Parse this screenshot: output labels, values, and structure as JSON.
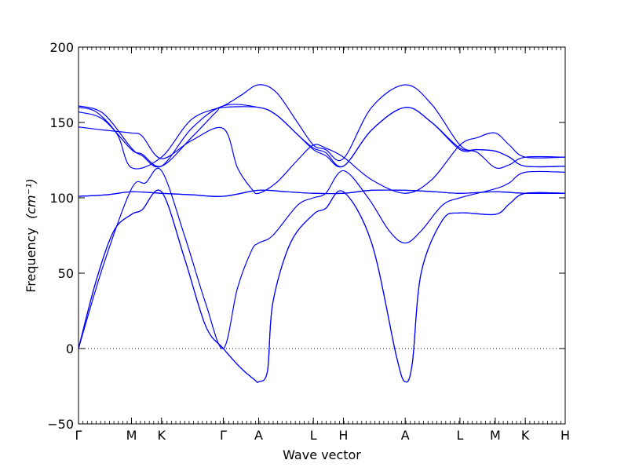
{
  "chart_data": {
    "type": "line",
    "title": "",
    "xlabel": "Wave vector",
    "ylabel": "Frequency",
    "ylabel_unit": "(cm⁻¹)",
    "ylim": [
      -50,
      200
    ],
    "yticks": [
      -50,
      0,
      50,
      100,
      150,
      200
    ],
    "grid": false,
    "zero_line": "dotted",
    "line_color": "#0000ff",
    "xlim": [
      0,
      13.78
    ],
    "high_symmetry_points": [
      {
        "label": "Γ",
        "x": 0
      },
      {
        "label": "M",
        "x": 1.5
      },
      {
        "label": "K",
        "x": 2.35
      },
      {
        "label": "Γ",
        "x": 4.1
      },
      {
        "label": "A",
        "x": 5.1
      },
      {
        "label": "L",
        "x": 6.65
      },
      {
        "label": "H",
        "x": 7.5
      },
      {
        "label": "A",
        "x": 9.25
      },
      {
        "label": "L",
        "x": 10.8
      },
      {
        "label": "M",
        "x": 11.8
      },
      {
        "label": "K",
        "x": 12.65
      },
      {
        "label": "H",
        "x": 13.78
      }
    ],
    "series": [
      {
        "values": [
          [
            0,
            0
          ],
          [
            0.5,
            45
          ],
          [
            1.0,
            78
          ],
          [
            1.5,
            89
          ],
          [
            1.8,
            92
          ],
          [
            2.35,
            104
          ],
          [
            3.0,
            60
          ],
          [
            3.6,
            15
          ],
          [
            4.1,
            0
          ],
          [
            4.6,
            -13
          ],
          [
            5.0,
            -21
          ],
          [
            5.1,
            -22
          ],
          [
            5.35,
            -15
          ],
          [
            5.5,
            30
          ],
          [
            6.0,
            70
          ],
          [
            6.65,
            89
          ],
          [
            7.0,
            93
          ],
          [
            7.5,
            104
          ],
          [
            8.3,
            70
          ],
          [
            9.0,
            -5
          ],
          [
            9.25,
            -22
          ],
          [
            9.45,
            -10
          ],
          [
            9.7,
            50
          ],
          [
            10.3,
            85
          ],
          [
            10.8,
            90
          ],
          [
            11.8,
            89
          ],
          [
            12.2,
            96
          ],
          [
            12.65,
            103
          ],
          [
            13.78,
            103
          ]
        ]
      },
      {
        "values": [
          [
            0,
            0
          ],
          [
            0.5,
            45
          ],
          [
            1.0,
            78
          ],
          [
            1.5,
            89
          ],
          [
            1.8,
            92
          ],
          [
            2.35,
            104
          ],
          [
            3.0,
            60
          ],
          [
            3.6,
            15
          ],
          [
            4.1,
            0
          ],
          [
            4.6,
            -13
          ],
          [
            5.0,
            -21
          ],
          [
            5.1,
            -22
          ],
          [
            5.35,
            -15
          ],
          [
            5.5,
            30
          ],
          [
            6.0,
            70
          ],
          [
            6.65,
            89
          ],
          [
            7.0,
            93
          ],
          [
            7.5,
            104
          ],
          [
            8.3,
            70
          ],
          [
            9.0,
            -5
          ],
          [
            9.25,
            -22
          ],
          [
            9.45,
            -10
          ],
          [
            9.7,
            50
          ],
          [
            10.3,
            85
          ],
          [
            10.8,
            90
          ],
          [
            11.8,
            89
          ],
          [
            12.2,
            96
          ],
          [
            12.65,
            103
          ],
          [
            13.78,
            103
          ]
        ]
      },
      {
        "values": [
          [
            0,
            0
          ],
          [
            0.7,
            55
          ],
          [
            1.5,
            106
          ],
          [
            1.9,
            110
          ],
          [
            2.35,
            118
          ],
          [
            3.0,
            75
          ],
          [
            3.6,
            30
          ],
          [
            4.1,
            0
          ],
          [
            4.5,
            40
          ],
          [
            4.9,
            65
          ],
          [
            5.1,
            70
          ],
          [
            5.5,
            75
          ],
          [
            6.2,
            95
          ],
          [
            6.65,
            100
          ],
          [
            7.0,
            103
          ],
          [
            7.5,
            118
          ],
          [
            8.2,
            100
          ],
          [
            8.8,
            78
          ],
          [
            9.25,
            70
          ],
          [
            9.7,
            78
          ],
          [
            10.3,
            95
          ],
          [
            10.8,
            100
          ],
          [
            11.8,
            106
          ],
          [
            12.2,
            110
          ],
          [
            12.65,
            117
          ],
          [
            13.78,
            117
          ]
        ]
      },
      {
        "values": [
          [
            0,
            101
          ],
          [
            0.8,
            102
          ],
          [
            1.5,
            104
          ],
          [
            2.35,
            103
          ],
          [
            3.2,
            102
          ],
          [
            4.1,
            101
          ],
          [
            5.1,
            105
          ],
          [
            5.9,
            104
          ],
          [
            6.65,
            103
          ],
          [
            7.5,
            103
          ],
          [
            8.3,
            105
          ],
          [
            9.25,
            105
          ],
          [
            10.1,
            104
          ],
          [
            10.8,
            103
          ],
          [
            11.8,
            104
          ],
          [
            12.65,
            103
          ],
          [
            13.78,
            103
          ]
        ]
      },
      {
        "values": [
          [
            0,
            101
          ],
          [
            0.8,
            102
          ],
          [
            1.5,
            104
          ],
          [
            2.35,
            103
          ],
          [
            3.2,
            102
          ],
          [
            4.1,
            101
          ],
          [
            5.1,
            105
          ],
          [
            5.9,
            104
          ],
          [
            6.65,
            103
          ],
          [
            7.5,
            103
          ],
          [
            8.3,
            105
          ],
          [
            9.25,
            105
          ],
          [
            10.1,
            104
          ],
          [
            10.8,
            103
          ],
          [
            11.8,
            104
          ],
          [
            12.65,
            103
          ],
          [
            13.78,
            103
          ]
        ]
      },
      {
        "values": [
          [
            0,
            147
          ],
          [
            0.7,
            145
          ],
          [
            1.5,
            143
          ],
          [
            1.8,
            141
          ],
          [
            2.35,
            126
          ],
          [
            3.2,
            138
          ],
          [
            4.1,
            146
          ],
          [
            4.5,
            120
          ],
          [
            4.9,
            106
          ],
          [
            5.1,
            103
          ],
          [
            5.6,
            110
          ],
          [
            6.2,
            125
          ],
          [
            6.65,
            135
          ],
          [
            7.0,
            133
          ],
          [
            7.5,
            127
          ],
          [
            8.3,
            112
          ],
          [
            9.25,
            103
          ],
          [
            10.0,
            112
          ],
          [
            10.8,
            135
          ],
          [
            11.3,
            140
          ],
          [
            11.8,
            143
          ],
          [
            12.2,
            135
          ],
          [
            12.65,
            127
          ],
          [
            13.78,
            127
          ]
        ]
      },
      {
        "values": [
          [
            0,
            157
          ],
          [
            0.7,
            152
          ],
          [
            1.5,
            132
          ],
          [
            1.8,
            129
          ],
          [
            2.35,
            121
          ],
          [
            3.2,
            140
          ],
          [
            3.9,
            157
          ],
          [
            4.1,
            160
          ],
          [
            5.1,
            160
          ],
          [
            5.6,
            155
          ],
          [
            6.2,
            142
          ],
          [
            6.65,
            132
          ],
          [
            7.0,
            128
          ],
          [
            7.5,
            121
          ],
          [
            8.3,
            145
          ],
          [
            9.25,
            160
          ],
          [
            10.0,
            150
          ],
          [
            10.8,
            132
          ],
          [
            11.3,
            132
          ],
          [
            11.8,
            131
          ],
          [
            12.2,
            127
          ],
          [
            12.65,
            121
          ],
          [
            13.78,
            121
          ]
        ]
      },
      {
        "values": [
          [
            0,
            161
          ],
          [
            0.7,
            156
          ],
          [
            1.5,
            133
          ],
          [
            1.8,
            128
          ],
          [
            2.35,
            121
          ],
          [
            3.2,
            146
          ],
          [
            4.1,
            161
          ],
          [
            5.1,
            160
          ],
          [
            5.6,
            155
          ],
          [
            6.2,
            142
          ],
          [
            6.65,
            133
          ],
          [
            7.0,
            130
          ],
          [
            7.5,
            121
          ],
          [
            8.3,
            145
          ],
          [
            9.25,
            160
          ],
          [
            10.0,
            150
          ],
          [
            10.8,
            133
          ],
          [
            11.3,
            132
          ],
          [
            11.8,
            131
          ],
          [
            12.2,
            127
          ],
          [
            12.65,
            121
          ],
          [
            13.78,
            121
          ]
        ]
      },
      {
        "values": [
          [
            0,
            160
          ],
          [
            0.5,
            157
          ],
          [
            1.1,
            142
          ],
          [
            1.5,
            120
          ],
          [
            2.35,
            127
          ],
          [
            3.2,
            152
          ],
          [
            4.1,
            161
          ],
          [
            4.6,
            168
          ],
          [
            5.1,
            175
          ],
          [
            5.6,
            170
          ],
          [
            6.2,
            150
          ],
          [
            6.65,
            135
          ],
          [
            7.0,
            132
          ],
          [
            7.5,
            126
          ],
          [
            8.3,
            160
          ],
          [
            9.25,
            175
          ],
          [
            10.0,
            162
          ],
          [
            10.8,
            135
          ],
          [
            11.3,
            130
          ],
          [
            11.8,
            120
          ],
          [
            12.2,
            122
          ],
          [
            12.65,
            127
          ],
          [
            13.78,
            127
          ]
        ]
      }
    ]
  }
}
